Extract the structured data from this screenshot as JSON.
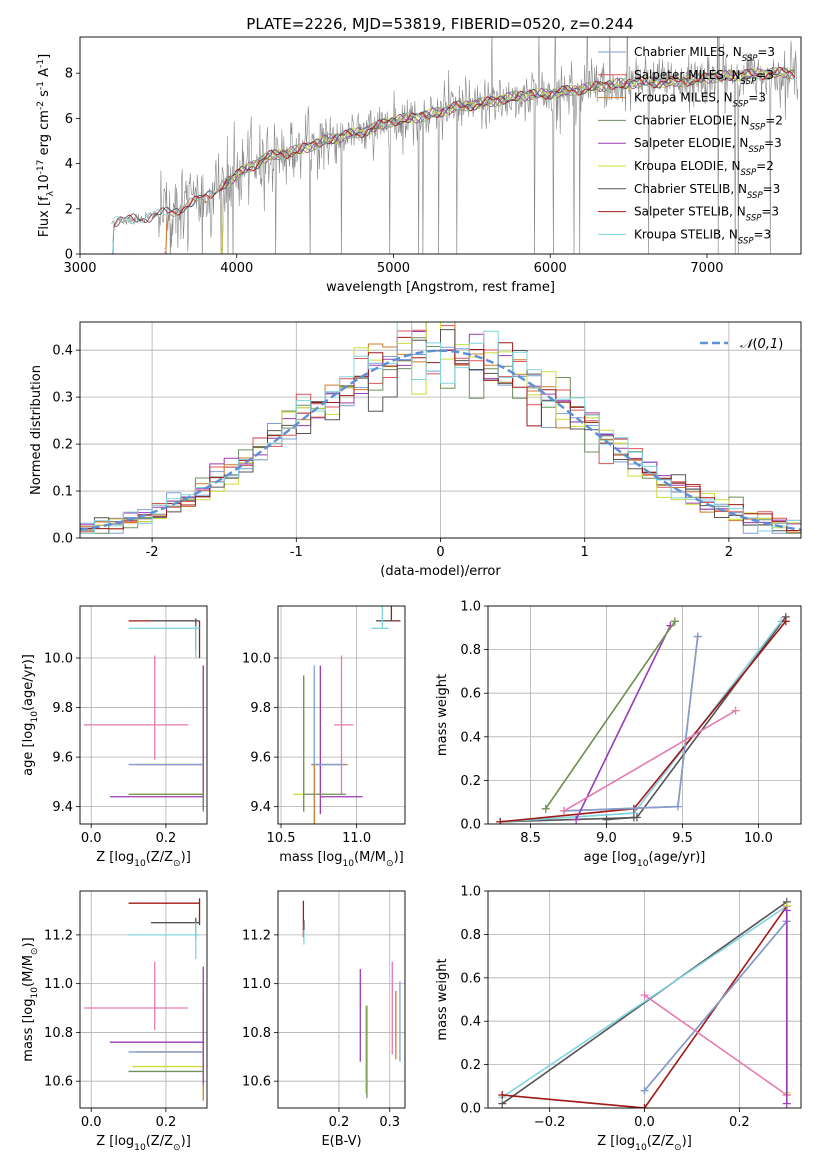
{
  "colors": {
    "Chabrier MILES": "#7f9fd6",
    "Salpeter MILES": "#e05555",
    "Kroupa MILES": "#d07a28",
    "Chabrier ELODIE": "#6f8f5f",
    "Salpeter ELODIE": "#9b3bb5",
    "Kroupa ELODIE": "#cddc39",
    "Chabrier STELIB": "#555555",
    "Salpeter STELIB": "#a01818",
    "Kroupa STELIB": "#80d4e0",
    "extra": "#e67ab3",
    "normal": "#5b8fd6"
  },
  "chart_data": [
    {
      "id": "spectrum",
      "type": "line",
      "title": "PLATE=2226, MJD=53819, FIBERID=0520, z=0.244",
      "xlabel": "wavelength [Angstrom, rest frame]",
      "ylabel": "Flux [f$_\\lambda$10$^{-17}$ erg cm$^{-2}$ s$^{-1}$ A$^{-1}$]",
      "xlim": [
        3000,
        7600
      ],
      "ylim": [
        0,
        9.6
      ],
      "xticks": [
        3000,
        4000,
        5000,
        6000,
        7000
      ],
      "yticks": [
        0,
        2,
        4,
        6,
        8
      ],
      "grid": false,
      "legend_position": "upper-right",
      "continuum": {
        "x": [
          3200,
          3400,
          3600,
          3800,
          4000,
          4200,
          4400,
          4600,
          4800,
          5000,
          5200,
          5400,
          5600,
          5800,
          6000,
          6200,
          6400,
          6600,
          6800,
          7000,
          7200,
          7400
        ],
        "y": [
          1.4,
          1.6,
          1.9,
          2.5,
          3.5,
          4.3,
          4.6,
          5.1,
          5.4,
          5.9,
          6.1,
          6.5,
          6.7,
          7.0,
          7.1,
          7.3,
          7.5,
          7.6,
          7.6,
          7.8,
          7.9,
          8.0
        ]
      },
      "series": [
        {
          "name": "Chabrier MILES",
          "nssp": "3",
          "start": 3540
        },
        {
          "name": "Salpeter MILES",
          "nssp": "3",
          "start": 3540
        },
        {
          "name": "Kroupa MILES",
          "nssp": "3",
          "start": 3540
        },
        {
          "name": "Chabrier ELODIE",
          "nssp": "2",
          "start": 3900
        },
        {
          "name": "Salpeter ELODIE",
          "nssp": "3",
          "start": 3900
        },
        {
          "name": "Kroupa ELODIE",
          "nssp": "2",
          "start": 3900
        },
        {
          "name": "Chabrier STELIB",
          "nssp": "3",
          "start": 3200
        },
        {
          "name": "Salpeter STELIB",
          "nssp": "3",
          "start": 3200
        },
        {
          "name": "Kroupa STELIB",
          "nssp": "3",
          "start": 3200
        }
      ]
    },
    {
      "id": "residuals",
      "type": "histogram",
      "xlabel": "(data-model)/error",
      "ylabel": "Normed distribution",
      "xlim": [
        -2.5,
        2.5
      ],
      "ylim": [
        0,
        0.46
      ],
      "xticks": [
        -2,
        -1,
        0,
        1,
        2
      ],
      "yticks": [
        0.0,
        0.1,
        0.2,
        0.3,
        0.4
      ],
      "grid": true,
      "legend": "$\\mathcal{N}(0,1)$",
      "legend_position": "upper-right",
      "bin_width": 0.1
    },
    {
      "id": "age-vs-Z",
      "type": "errorbar",
      "xlabel": "Z [log$_{10}$(Z/Z$_\\odot$)]",
      "ylabel": "age  [log$_{10}$(age/yr)]",
      "xlim": [
        -0.03,
        0.31
      ],
      "ylim": [
        9.33,
        10.21
      ],
      "xticks": [
        0.0,
        0.2
      ],
      "yticks": [
        9.4,
        9.6,
        9.8,
        10.0
      ],
      "grid": true,
      "points": [
        {
          "x": 0.29,
          "y": 10.15,
          "xerr": [
            0.19,
            0.0
          ],
          "yerr": [
            0.15,
            0.0
          ],
          "series": "Salpeter STELIB"
        },
        {
          "x": 0.28,
          "y": 10.15,
          "xerr": [
            0.12,
            0.01
          ],
          "yerr": [
            0.12,
            0.01
          ],
          "series": "Chabrier STELIB"
        },
        {
          "x": 0.28,
          "y": 10.12,
          "xerr": [
            0.18,
            0.01
          ],
          "yerr": [
            0.12,
            0.01
          ],
          "series": "Kroupa STELIB"
        },
        {
          "x": 0.17,
          "y": 9.73,
          "xerr": [
            0.19,
            0.09
          ],
          "yerr": [
            0.14,
            0.28
          ],
          "series": "extra"
        },
        {
          "x": 0.3,
          "y": 9.57,
          "xerr": [
            0.18,
            0.0
          ],
          "yerr": [
            0.05,
            0.4
          ],
          "series": "Kroupa MILES"
        },
        {
          "x": 0.3,
          "y": 9.45,
          "xerr": [
            0.19,
            0.0
          ],
          "yerr": [
            0.06,
            0.46
          ],
          "series": "Kroupa ELODIE"
        },
        {
          "x": 0.3,
          "y": 9.44,
          "xerr": [
            0.25,
            0.0
          ],
          "yerr": [
            0.05,
            0.53
          ],
          "series": "Salpeter ELODIE"
        },
        {
          "x": 0.3,
          "y": 9.45,
          "xerr": [
            0.2,
            0.0
          ],
          "yerr": [
            0.07,
            0.0
          ],
          "series": "Chabrier ELODIE"
        },
        {
          "x": 0.3,
          "y": 9.57,
          "xerr": [
            0.2,
            0.0
          ],
          "yerr": [
            0.0,
            0.0
          ],
          "series": "Chabrier MILES"
        }
      ]
    },
    {
      "id": "age-vs-mass",
      "type": "errorbar",
      "xlabel": "mass [log$_{10}$(M/M$_\\odot$)]",
      "xlim": [
        10.48,
        11.32
      ],
      "ylim": [
        9.33,
        10.21
      ],
      "xticks": [
        10.5,
        11.0
      ],
      "yticks": [
        9.4,
        9.6,
        9.8,
        10.0
      ],
      "grid": true,
      "points": [
        {
          "x": 11.23,
          "y": 10.15,
          "xerr": [
            0.1,
            0.06
          ],
          "yerr": [
            0.0,
            0.12
          ],
          "series": "Salpeter STELIB"
        },
        {
          "x": 11.2,
          "y": 10.15,
          "xerr": [
            0.07,
            0.06
          ],
          "yerr": [
            0.0,
            0.0
          ],
          "series": "Chabrier STELIB"
        },
        {
          "x": 11.17,
          "y": 10.12,
          "xerr": [
            0.07,
            0.04
          ],
          "yerr": [
            0.0,
            0.09
          ],
          "series": "Kroupa STELIB"
        },
        {
          "x": 10.9,
          "y": 9.73,
          "xerr": [
            0.05,
            0.08
          ],
          "yerr": [
            0.28,
            0.28
          ],
          "series": "extra"
        },
        {
          "x": 10.72,
          "y": 9.57,
          "xerr": [
            0.02,
            0.22
          ],
          "yerr": [
            0.37,
            0.0
          ],
          "series": "Kroupa MILES"
        },
        {
          "x": 10.65,
          "y": 9.45,
          "xerr": [
            0.07,
            0.0
          ],
          "yerr": [
            0.07,
            0.48
          ],
          "series": "Kroupa ELODIE"
        },
        {
          "x": 10.76,
          "y": 9.44,
          "xerr": [
            0.0,
            0.28
          ],
          "yerr": [
            0.07,
            0.53
          ],
          "series": "Salpeter ELODIE"
        },
        {
          "x": 10.65,
          "y": 9.45,
          "xerr": [
            0.0,
            0.28
          ],
          "yerr": [
            0.07,
            0.48
          ],
          "series": "Chabrier ELODIE"
        },
        {
          "x": 10.72,
          "y": 9.57,
          "xerr": [
            0.0,
            0.2
          ],
          "yerr": [
            0.0,
            0.4
          ],
          "series": "Chabrier MILES"
        }
      ]
    },
    {
      "id": "mass-weight-vs-age",
      "type": "line",
      "xlabel": "age  [log$_{10}$(age/yr)]",
      "ylabel": "mass weight",
      "xlim": [
        8.22,
        10.28
      ],
      "ylim": [
        0,
        1
      ],
      "xticks": [
        8.5,
        9.0,
        9.5,
        10.0
      ],
      "yticks": [
        0.0,
        0.2,
        0.4,
        0.6,
        0.8,
        1.0
      ],
      "grid": true,
      "series": [
        {
          "series": "Chabrier STELIB",
          "x": [
            8.3,
            9.2,
            10.18
          ],
          "y": [
            0.01,
            0.03,
            0.95
          ]
        },
        {
          "series": "Kroupa STELIB",
          "x": [
            8.3,
            9.18,
            10.15
          ],
          "y": [
            0.01,
            0.05,
            0.93
          ]
        },
        {
          "series": "Salpeter STELIB",
          "x": [
            8.3,
            9.18,
            10.18
          ],
          "y": [
            0.01,
            0.07,
            0.93
          ]
        },
        {
          "series": "Kroupa MILES",
          "x": [
            8.72,
            9.47,
            9.6
          ],
          "y": [
            0.06,
            0.08,
            0.86
          ]
        },
        {
          "series": "Chabrier MILES",
          "x": [
            8.72,
            9.47,
            9.6
          ],
          "y": [
            0.06,
            0.08,
            0.86
          ]
        },
        {
          "series": "Salpeter ELODIE",
          "x": [
            8.8,
            9.42
          ],
          "y": [
            0.02,
            0.91
          ]
        },
        {
          "series": "Kroupa ELODIE",
          "x": [
            8.6,
            9.45
          ],
          "y": [
            0.07,
            0.93
          ]
        },
        {
          "series": "Chabrier ELODIE",
          "x": [
            8.6,
            9.45
          ],
          "y": [
            0.07,
            0.93
          ]
        },
        {
          "series": "extra",
          "x": [
            8.72,
            9.85
          ],
          "y": [
            0.06,
            0.52
          ]
        },
        {
          "series": "Chabrier STELIB",
          "x": [
            9.0,
            9.18
          ],
          "y": [
            0.02,
            0.03
          ]
        }
      ]
    },
    {
      "id": "mass-vs-Z",
      "type": "errorbar",
      "xlabel": "Z [log$_{10}$(Z/Z$_\\odot$)]",
      "ylabel": "mass [log$_{10}$(M/M$_\\odot$)]",
      "xlim": [
        -0.03,
        0.31
      ],
      "ylim": [
        10.49,
        11.38
      ],
      "xticks": [
        0.0,
        0.2
      ],
      "yticks": [
        10.6,
        10.8,
        11.0,
        11.2
      ],
      "grid": true,
      "points": [
        {
          "x": 0.29,
          "y": 11.33,
          "xerr": [
            0.19,
            0.0
          ],
          "yerr": [
            0.09,
            0.02
          ],
          "series": "Salpeter STELIB"
        },
        {
          "x": 0.28,
          "y": 11.25,
          "xerr": [
            0.12,
            0.01
          ],
          "yerr": [
            0.07,
            0.02
          ],
          "series": "Chabrier STELIB"
        },
        {
          "x": 0.28,
          "y": 11.2,
          "xerr": [
            0.18,
            0.01
          ],
          "yerr": [
            0.1,
            0.05
          ],
          "series": "Kroupa STELIB"
        },
        {
          "x": 0.17,
          "y": 10.9,
          "xerr": [
            0.19,
            0.09
          ],
          "yerr": [
            0.09,
            0.19
          ],
          "series": "extra"
        },
        {
          "x": 0.3,
          "y": 10.72,
          "xerr": [
            0.18,
            0.0
          ],
          "yerr": [
            0.2,
            0.25
          ],
          "series": "Kroupa MILES"
        },
        {
          "x": 0.3,
          "y": 10.66,
          "xerr": [
            0.19,
            0.0
          ],
          "yerr": [
            0.05,
            0.0
          ],
          "series": "Kroupa ELODIE"
        },
        {
          "x": 0.3,
          "y": 10.76,
          "xerr": [
            0.25,
            0.0
          ],
          "yerr": [
            0.17,
            0.31
          ],
          "series": "Salpeter ELODIE"
        },
        {
          "x": 0.3,
          "y": 10.64,
          "xerr": [
            0.2,
            0.0
          ],
          "yerr": [
            0.0,
            0.0
          ],
          "series": "Chabrier ELODIE"
        },
        {
          "x": 0.3,
          "y": 10.72,
          "xerr": [
            0.2,
            0.0
          ],
          "yerr": [
            0.0,
            0.0
          ],
          "series": "Chabrier MILES"
        }
      ]
    },
    {
      "id": "mass-vs-EBV",
      "type": "errorbar",
      "xlabel": "E(B-V)",
      "xlim": [
        0.08,
        0.33
      ],
      "ylim": [
        10.49,
        11.38
      ],
      "xticks": [
        0.2,
        0.3
      ],
      "yticks": [
        10.6,
        10.8,
        11.0,
        11.2
      ],
      "grid": true,
      "points": [
        {
          "x": 0.13,
          "y": 11.25,
          "yerr": [
            0.06,
            0.09
          ],
          "series": "Salpeter STELIB"
        },
        {
          "x": 0.131,
          "y": 11.2,
          "yerr": [
            0.04,
            0.05
          ],
          "series": "Kroupa STELIB"
        },
        {
          "x": 0.131,
          "y": 11.22,
          "yerr": [
            0.0,
            0.04
          ],
          "series": "Chabrier STELIB"
        },
        {
          "x": 0.242,
          "y": 10.87,
          "yerr": [
            0.19,
            0.19
          ],
          "series": "Salpeter ELODIE"
        },
        {
          "x": 0.253,
          "y": 10.72,
          "yerr": [
            0.17,
            0.19
          ],
          "series": "Kroupa ELODIE"
        },
        {
          "x": 0.255,
          "y": 10.73,
          "yerr": [
            0.2,
            0.18
          ],
          "series": "Chabrier ELODIE"
        },
        {
          "x": 0.305,
          "y": 10.9,
          "yerr": [
            0.19,
            0.19
          ],
          "series": "extra"
        },
        {
          "x": 0.312,
          "y": 10.82,
          "yerr": [
            0.13,
            0.15
          ],
          "series": "Kroupa MILES"
        },
        {
          "x": 0.32,
          "y": 10.84,
          "yerr": [
            0.16,
            0.17
          ],
          "series": "Chabrier MILES"
        }
      ]
    },
    {
      "id": "mass-weight-vs-Z",
      "type": "line",
      "xlabel": "Z [log$_{10}$(Z/Z$_\\odot$)]",
      "ylabel": "mass weight",
      "xlim": [
        -0.33,
        0.33
      ],
      "ylim": [
        0,
        1
      ],
      "xticks": [
        -0.2,
        0.0,
        0.2
      ],
      "yticks": [
        0.0,
        0.2,
        0.4,
        0.6,
        0.8,
        1.0
      ],
      "grid": true,
      "series": [
        {
          "series": "Chabrier STELIB",
          "x": [
            -0.3,
            0.3
          ],
          "y": [
            0.02,
            0.95
          ]
        },
        {
          "series": "Kroupa STELIB",
          "x": [
            -0.3,
            0.3
          ],
          "y": [
            0.05,
            0.93
          ]
        },
        {
          "series": "Salpeter STELIB",
          "x": [
            -0.3,
            0.0,
            0.3
          ],
          "y": [
            0.06,
            0.0,
            0.93
          ]
        },
        {
          "series": "Kroupa MILES",
          "x": [
            0.0,
            0.3,
            0.3
          ],
          "y": [
            0.08,
            0.86,
            0.06
          ]
        },
        {
          "series": "Chabrier MILES",
          "x": [
            0.0,
            0.3
          ],
          "y": [
            0.08,
            0.86
          ]
        },
        {
          "series": "extra",
          "x": [
            0.0,
            0.3
          ],
          "y": [
            0.52,
            0.06
          ]
        },
        {
          "series": "Kroupa ELODIE",
          "x": [
            0.3,
            0.3
          ],
          "y": [
            0.07,
            0.93
          ]
        },
        {
          "series": "Salpeter ELODIE",
          "x": [
            0.3,
            0.3
          ],
          "y": [
            0.02,
            0.91
          ]
        }
      ]
    }
  ]
}
